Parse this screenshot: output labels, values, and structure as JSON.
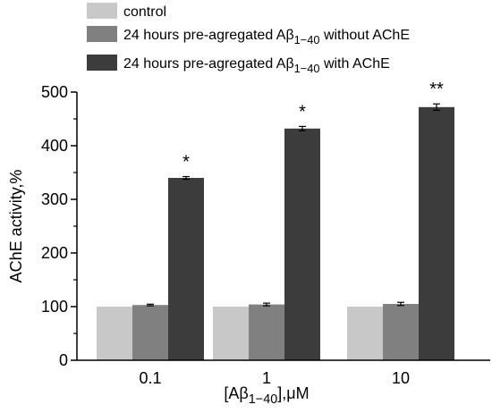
{
  "chart_data": {
    "type": "bar",
    "categories": [
      "0.1",
      "1",
      "10"
    ],
    "series": [
      {
        "name": "control",
        "values": [
          100,
          100,
          100
        ],
        "errors": [
          0,
          0,
          0
        ],
        "color": "#c8c8c8"
      },
      {
        "name_parts": [
          "24 hours pre-agregated A",
          "β",
          "1−40",
          " without AChE"
        ],
        "values": [
          103,
          104,
          105
        ],
        "errors": [
          1.5,
          2.5,
          3
        ],
        "color": "#808080"
      },
      {
        "name_parts": [
          "24 hours pre-agregated A",
          "β",
          "1−40",
          " with AChE"
        ],
        "values": [
          340,
          432,
          472
        ],
        "errors": [
          2.5,
          4,
          6
        ],
        "color": "#3c3c3c"
      }
    ],
    "annotations": [
      "*",
      "*",
      "**"
    ],
    "ylabel": "AChE activity,%",
    "xlabel_parts": [
      "[A",
      "β",
      "1−40",
      "],μM"
    ],
    "ylim": [
      0,
      500
    ],
    "yticks": [
      "0",
      "100",
      "200",
      "300",
      "400",
      "500"
    ],
    "grid": false,
    "legend_position": "top"
  }
}
